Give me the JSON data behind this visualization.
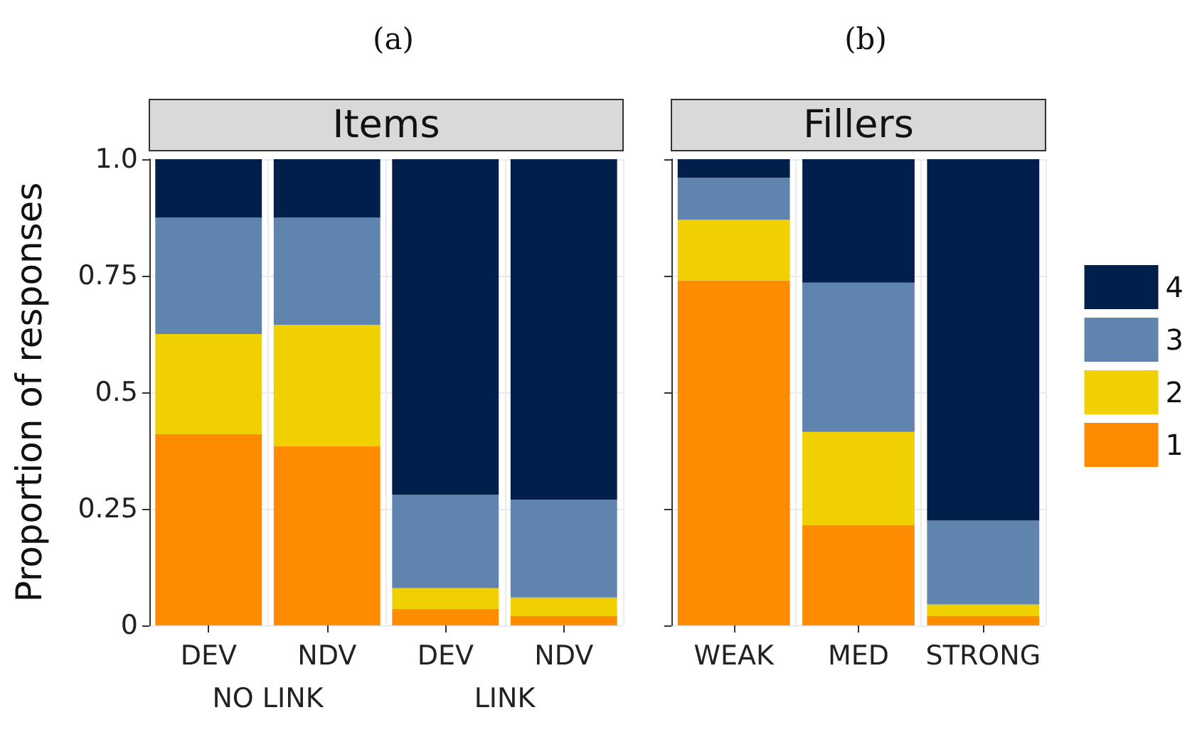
{
  "chart_data": [
    {
      "type": "bar",
      "title": "(a)",
      "subtitle": "Items",
      "ylabel": "Proportion of responses",
      "categories": [
        "DEV",
        "NDV",
        "DEV",
        "NDV"
      ],
      "annotations": [
        "NO LINK",
        "LINK"
      ],
      "stacked": true,
      "grid": true,
      "legend": false,
      "ylim": [
        0,
        1
      ],
      "yticks": [
        0,
        0.25,
        0.5,
        0.75,
        {
          "value": 1,
          "label": "1.0"
        }
      ],
      "series": [
        {
          "color": "#ff8c00",
          "values": [
            0.41,
            0.385,
            0.035,
            0.02
          ]
        },
        {
          "color": "#f0d000",
          "values": [
            0.215,
            0.26,
            0.045,
            0.04
          ]
        },
        {
          "color": "#5f84ae",
          "values": [
            0.25,
            0.23,
            0.2,
            0.21
          ]
        },
        {
          "color": "#001f4b",
          "values": [
            0.125,
            0.125,
            0.72,
            0.73
          ]
        }
      ]
    },
    {
      "type": "bar",
      "title": "(b)",
      "subtitle": "Fillers",
      "categories": [
        "WEAK",
        "MED",
        "STRONG"
      ],
      "stacked": true,
      "grid": true,
      "legend": "right",
      "tick_labels": "x",
      "ylim": [
        0,
        1
      ],
      "yticks": [
        0,
        0.25,
        0.5,
        0.75,
        1
      ],
      "series": [
        {
          "name": "1",
          "color": "#ff8c00",
          "values": [
            0.74,
            0.215,
            0.02
          ]
        },
        {
          "name": "2",
          "color": "#f0d000",
          "values": [
            0.13,
            0.2,
            0.025
          ]
        },
        {
          "name": "3",
          "color": "#5f84ae",
          "values": [
            0.09,
            0.32,
            0.18
          ]
        },
        {
          "name": "4",
          "color": "#001f4b",
          "values": [
            0.04,
            0.265,
            0.775
          ]
        }
      ]
    }
  ]
}
